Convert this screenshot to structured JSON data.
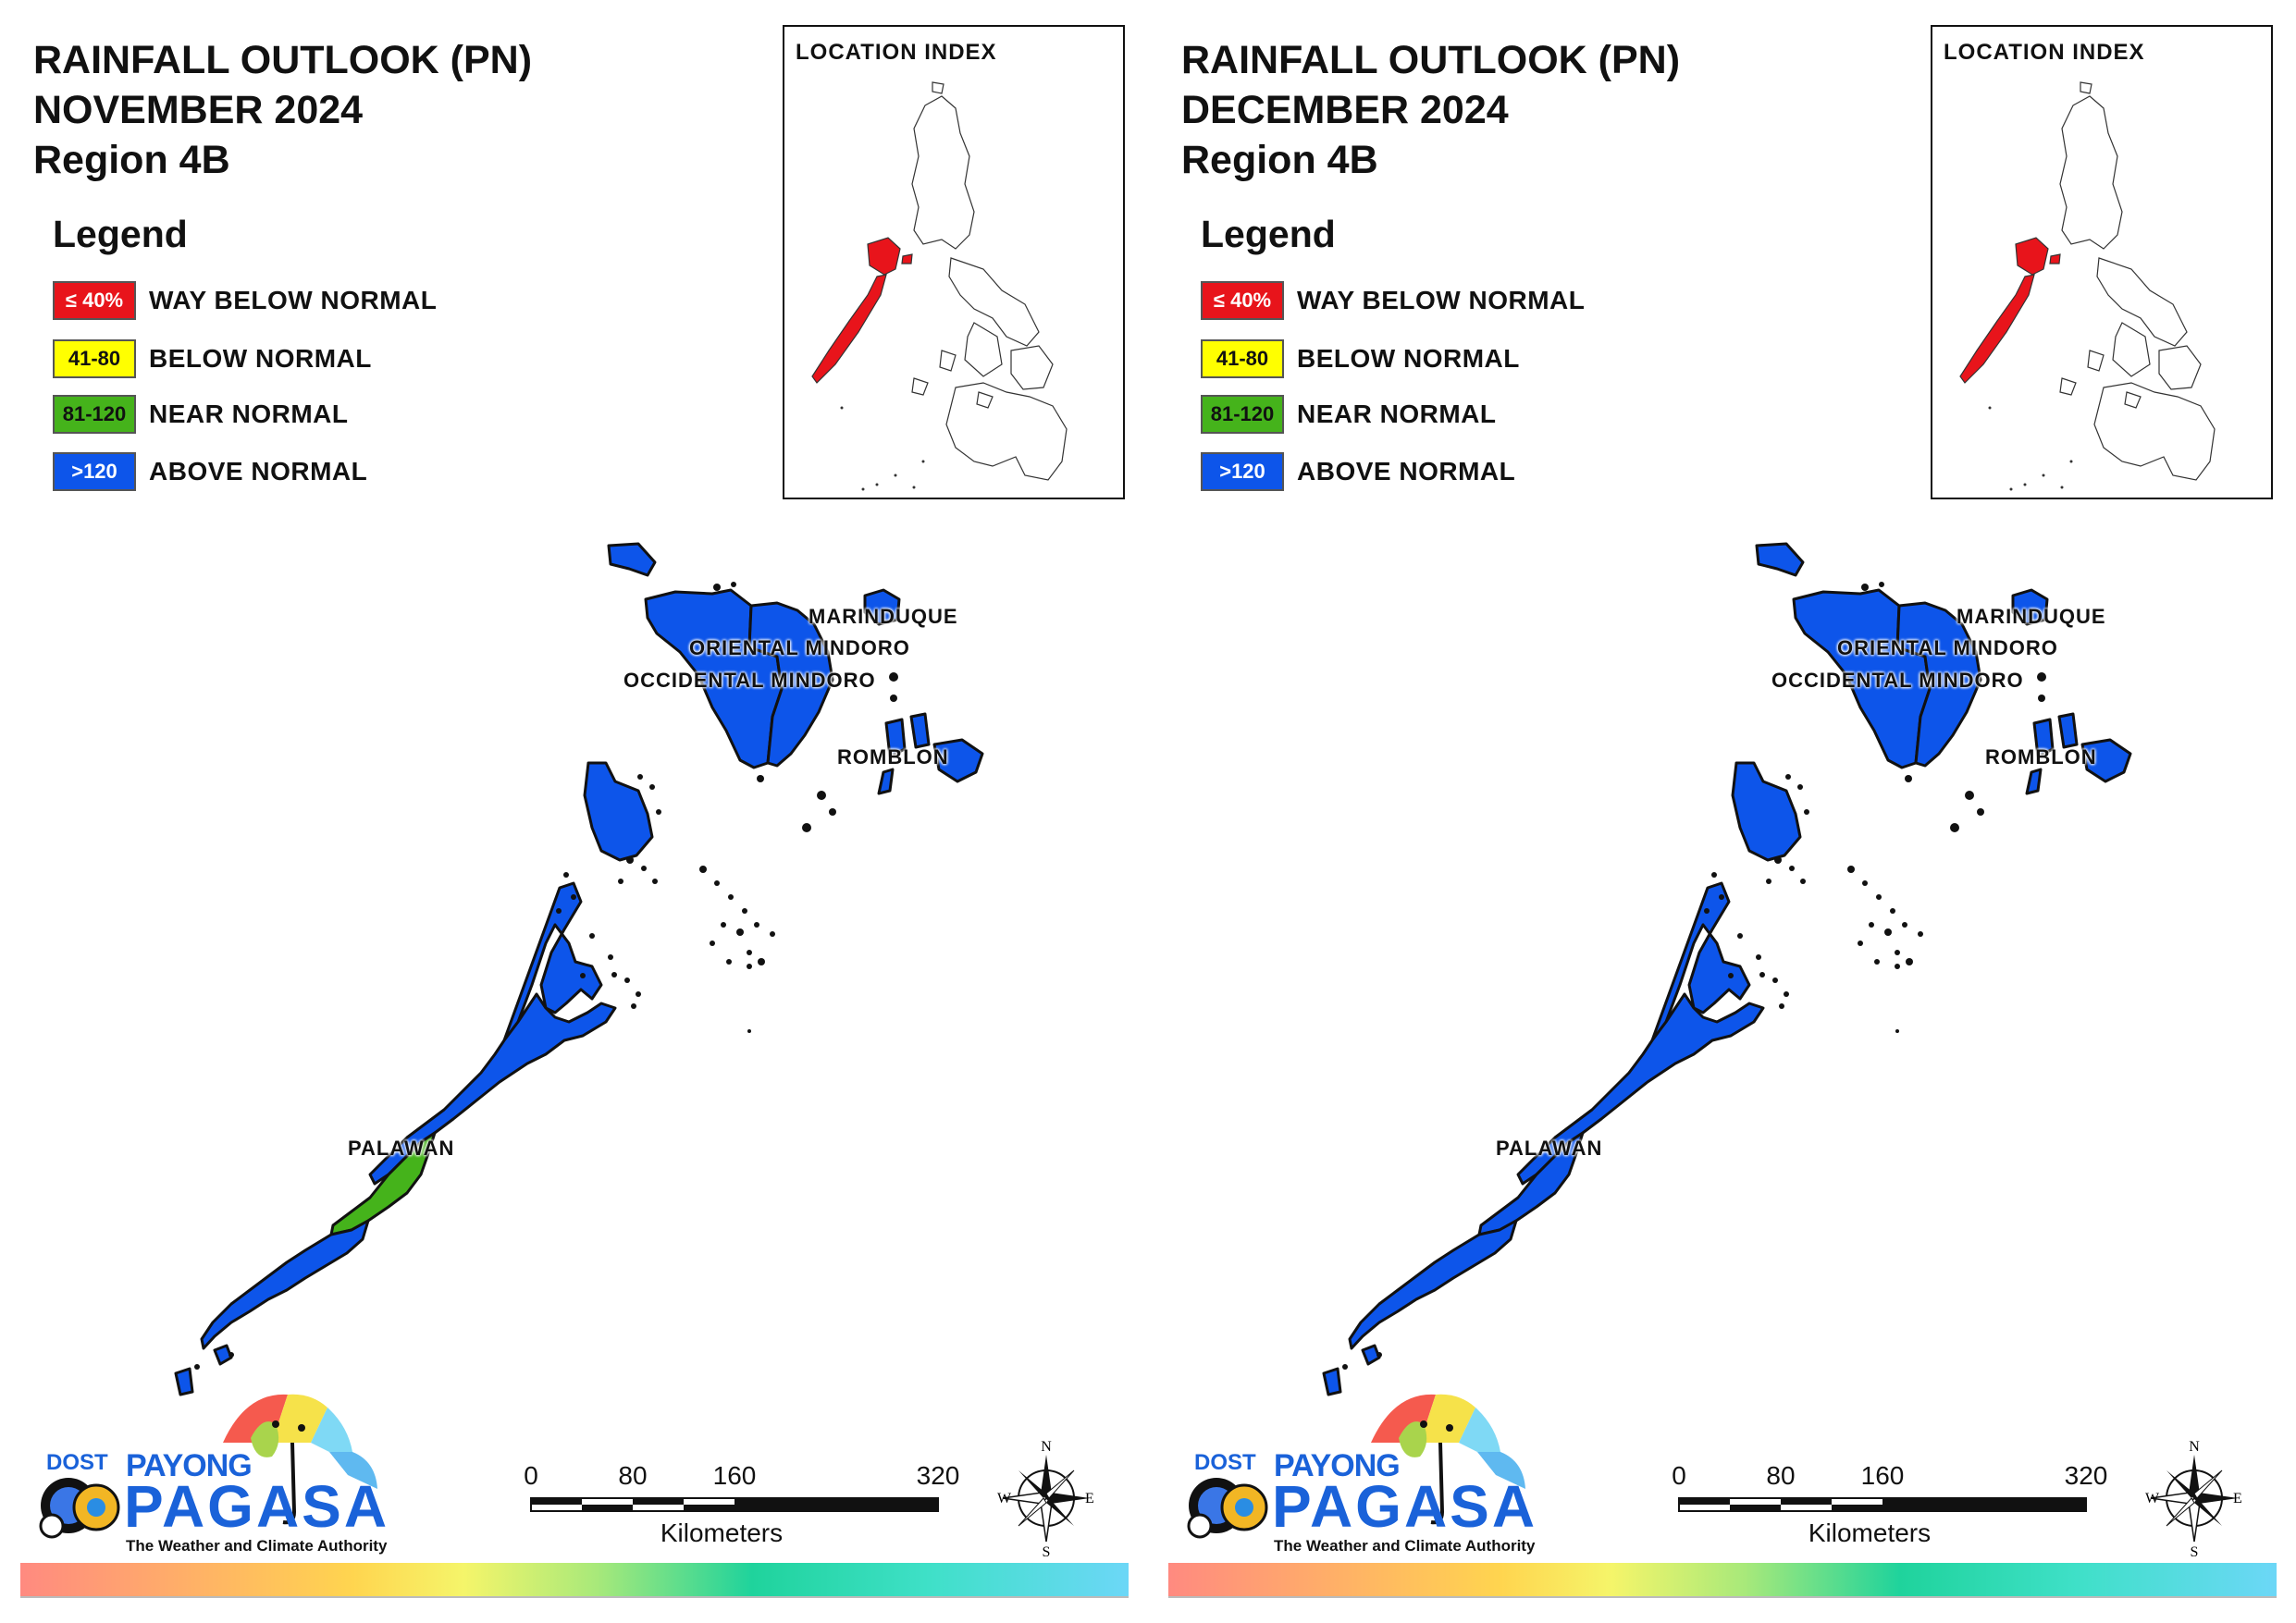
{
  "colors": {
    "way_below": "#e8141b",
    "below": "#ffff00",
    "near": "#45b31b",
    "above": "#0d55ea"
  },
  "legend": {
    "heading": "Legend",
    "items": [
      {
        "range": "≤ 40%",
        "label": "WAY BELOW NORMAL",
        "color": "#e8141b",
        "text_color": "#ffffff"
      },
      {
        "range": "41-80",
        "label": "BELOW NORMAL",
        "color": "#ffff00",
        "text_color": "#111111"
      },
      {
        "range": "81-120",
        "label": "NEAR NORMAL",
        "color": "#45b31b",
        "text_color": "#111111"
      },
      {
        "range": ">120",
        "label": "ABOVE NORMAL",
        "color": "#0d55ea",
        "text_color": "#ffffff"
      }
    ]
  },
  "index": {
    "title": "LOCATION INDEX"
  },
  "provinces": {
    "marinduque": "MARINDUQUE",
    "oriental_mindoro": "ORIENTAL MINDORO",
    "occidental_mindoro": "OCCIDENTAL MINDORO",
    "romblon": "ROMBLON",
    "palawan": "PALAWAN"
  },
  "scale": {
    "ticks": [
      "0",
      "80",
      "160",
      "320"
    ],
    "unit": "Kilometers"
  },
  "compass": {
    "n": "N",
    "s": "S",
    "e": "E",
    "w": "W"
  },
  "logo": {
    "dost": "DOST",
    "payong": "PAYONG",
    "pagasa": "PAGASA",
    "tagline": "The Weather and Climate Authority"
  },
  "panels": [
    {
      "title_line1": "RAINFALL OUTLOOK (PN)",
      "title_line2": "NOVEMBER 2024",
      "title_line3": "Region 4B",
      "classes": {
        "marinduque": "above",
        "oriental_mindoro": "above",
        "occidental_mindoro": "above",
        "romblon": "above",
        "palawan_north": "above",
        "palawan_central": "near",
        "palawan_south": "above"
      }
    },
    {
      "title_line1": "RAINFALL OUTLOOK (PN)",
      "title_line2": "DECEMBER 2024",
      "title_line3": "Region 4B",
      "classes": {
        "marinduque": "above",
        "oriental_mindoro": "above",
        "occidental_mindoro": "above",
        "romblon": "above",
        "palawan_north": "above",
        "palawan_central": "above",
        "palawan_south": "above"
      }
    }
  ]
}
